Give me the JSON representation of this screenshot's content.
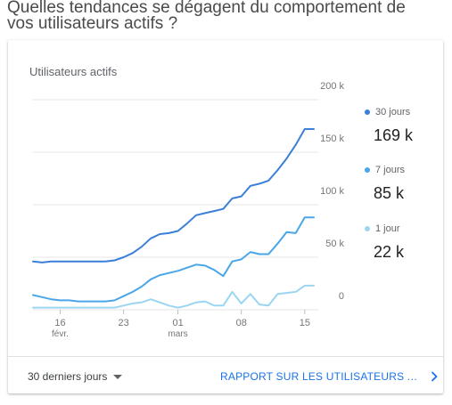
{
  "question": "Quelles tendances se dégagent du comportement de vos utilisateurs actifs ?",
  "card": {
    "title": "Utilisateurs actifs",
    "legend": [
      {
        "label": "30 jours",
        "value": "169 k",
        "color": "#3b7fd8"
      },
      {
        "label": "7 jours",
        "value": "85 k",
        "color": "#4aa6e8"
      },
      {
        "label": "1 jour",
        "value": "22 k",
        "color": "#9ad6f2"
      }
    ],
    "footer": {
      "date_range": "30 derniers jours",
      "report_link": "RAPPORT SUR LES UTILISATEURS ACTIFS"
    }
  },
  "chart_data": {
    "type": "line",
    "x": [
      "13 févr.",
      "14 févr.",
      "15 févr.",
      "16 févr.",
      "17 févr.",
      "18 févr.",
      "19 févr.",
      "20 févr.",
      "21 févr.",
      "22 févr.",
      "23 févr.",
      "24 févr.",
      "25 févr.",
      "26 févr.",
      "27 févr.",
      "28 févr.",
      "01 mars",
      "02 mars",
      "03 mars",
      "04 mars",
      "05 mars",
      "06 mars",
      "07 mars",
      "08 mars",
      "09 mars",
      "10 mars",
      "11 mars",
      "12 mars",
      "13 mars",
      "14 mars",
      "15 mars",
      "16 mars"
    ],
    "x_ticks": [
      {
        "x": "16 févr.",
        "label": "16",
        "sublabel": "févr."
      },
      {
        "x": "23 févr.",
        "label": "23",
        "sublabel": ""
      },
      {
        "x": "01 mars",
        "label": "01",
        "sublabel": "mars"
      },
      {
        "x": "08 mars",
        "label": "08",
        "sublabel": ""
      },
      {
        "x": "15 mars",
        "label": "15",
        "sublabel": ""
      }
    ],
    "y_ticks": [
      0,
      50000,
      100000,
      150000,
      200000
    ],
    "y_tick_labels": [
      "0",
      "50 k",
      "100 k",
      "150 k",
      "200 k"
    ],
    "ylim": [
      0,
      200000
    ],
    "grid": true,
    "legend_position": "right",
    "series": [
      {
        "name": "30 jours",
        "color": "#3b7fd8",
        "values": [
          46000,
          45000,
          46000,
          46000,
          46000,
          46000,
          46000,
          46000,
          46000,
          47000,
          50000,
          54000,
          60000,
          68000,
          72000,
          73000,
          75000,
          82000,
          90000,
          92000,
          94000,
          96000,
          106000,
          108000,
          118000,
          120000,
          123000,
          133000,
          144000,
          157000,
          172000,
          172000
        ]
      },
      {
        "name": "7 jours",
        "color": "#4aa6e8",
        "values": [
          14000,
          12000,
          10000,
          9000,
          9000,
          8000,
          8000,
          8000,
          8000,
          9000,
          13000,
          17000,
          22000,
          29000,
          33000,
          35000,
          37000,
          40000,
          43000,
          42000,
          38000,
          32000,
          46000,
          48000,
          55000,
          53000,
          53000,
          63000,
          74000,
          73000,
          88000,
          88000
        ]
      },
      {
        "name": "1 jour",
        "color": "#9ad6f2",
        "values": [
          2000,
          2000,
          2000,
          2000,
          2000,
          2000,
          2000,
          2000,
          2000,
          2000,
          4000,
          6000,
          7000,
          10000,
          7000,
          4000,
          2000,
          4000,
          7000,
          8000,
          4000,
          4000,
          17000,
          6000,
          15000,
          5000,
          4000,
          15000,
          16000,
          17000,
          23000,
          23000
        ]
      }
    ]
  }
}
